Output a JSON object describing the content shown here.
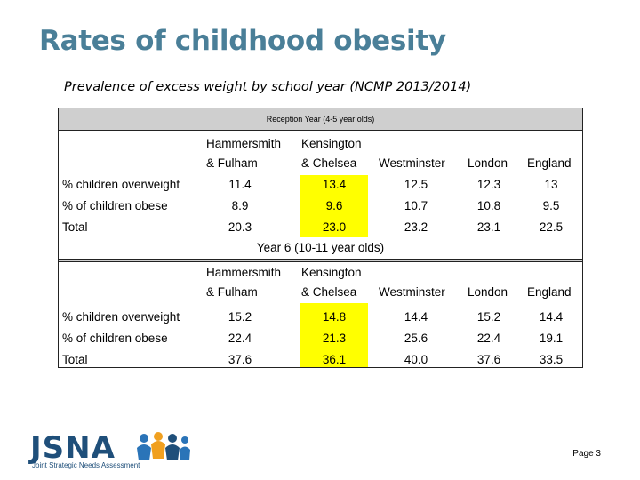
{
  "title": "Rates of childhood obesity",
  "subtitle": "Prevalence of excess weight by school year (NCMP 2013/2014)",
  "columns": [
    "Hammersmith & Fulham",
    "Kensington & Chelsea",
    "Westminster",
    "London",
    "England"
  ],
  "reception": {
    "heading": "Reception Year (4-5 year olds)",
    "col_hf": [
      "Hammersmith",
      "& Fulham"
    ],
    "col_kc": [
      "Kensington",
      "& Chelsea"
    ],
    "col_wm": "Westminster",
    "col_ld": "London",
    "col_en": "England",
    "rows": [
      {
        "label": "% children overweight",
        "values": [
          "11.4",
          "13.4",
          "12.5",
          "12.3",
          "13"
        ]
      },
      {
        "label": "% of children obese",
        "values": [
          "8.9",
          "9.6",
          "10.7",
          "10.8",
          "9.5"
        ]
      },
      {
        "label": "Total",
        "values": [
          "20.3",
          "23.0",
          "23.2",
          "23.1",
          "22.5"
        ]
      }
    ]
  },
  "year6": {
    "heading": "Year 6 (10-11 year olds)",
    "col_hf": [
      "Hammersmith",
      "& Fulham"
    ],
    "col_kc": [
      "Kensington",
      "& Chelsea"
    ],
    "col_wm": "Westminster",
    "col_ld": "London",
    "col_en": "England",
    "rows": [
      {
        "label": "% children overweight",
        "values": [
          "15.2",
          "14.8",
          "14.4",
          "15.2",
          "14.4"
        ]
      },
      {
        "label": "% of children obese",
        "values": [
          "22.4",
          "21.3",
          "25.6",
          "22.4",
          "19.1"
        ]
      },
      {
        "label": "Total",
        "values": [
          "37.6",
          "36.1",
          "40.0",
          "37.6",
          "33.5"
        ]
      }
    ]
  },
  "highlight_color": "#ffff00",
  "logo": {
    "word": "JSNA",
    "tagline": "Joint Strategic Needs Assessment"
  },
  "page": "Page 3"
}
